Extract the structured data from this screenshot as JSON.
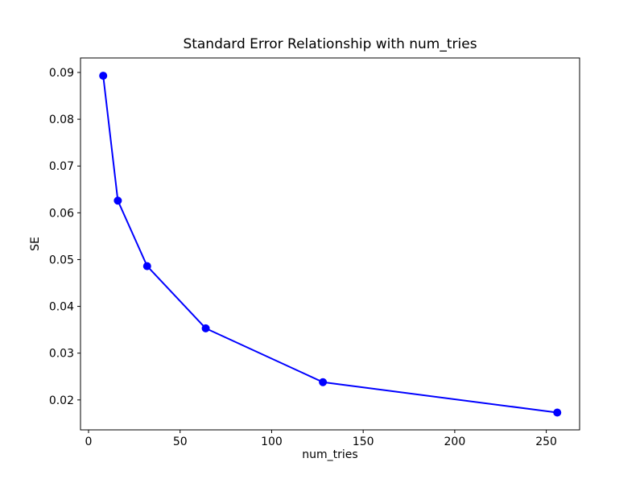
{
  "figure": {
    "background": "#ffffff"
  },
  "chart_data": {
    "type": "line",
    "title": "Standard Error Relationship with num_tries",
    "xlabel": "num_tries",
    "ylabel": "SE",
    "x": [
      8,
      16,
      32,
      64,
      128,
      256
    ],
    "y": [
      0.0893,
      0.0626,
      0.0486,
      0.0353,
      0.0238,
      0.0173
    ],
    "xlim": [
      -4.4,
      268.2
    ],
    "ylim": [
      0.0136,
      0.0931
    ],
    "xticks": [
      0,
      50,
      100,
      150,
      200,
      250
    ],
    "xtick_labels": [
      "0",
      "50",
      "100",
      "150",
      "200",
      "250"
    ],
    "yticks": [
      0.02,
      0.03,
      0.04,
      0.05,
      0.06,
      0.07,
      0.08,
      0.09
    ],
    "ytick_labels": [
      "0.02",
      "0.03",
      "0.04",
      "0.05",
      "0.06",
      "0.07",
      "0.08",
      "0.09"
    ],
    "grid": false,
    "legend": false,
    "marker": "circle",
    "marker_radius": 5,
    "line_width": 2,
    "colors": {
      "line": "#0000ff",
      "axis": "#000000",
      "text": "#000000",
      "background": "#ffffff"
    }
  }
}
